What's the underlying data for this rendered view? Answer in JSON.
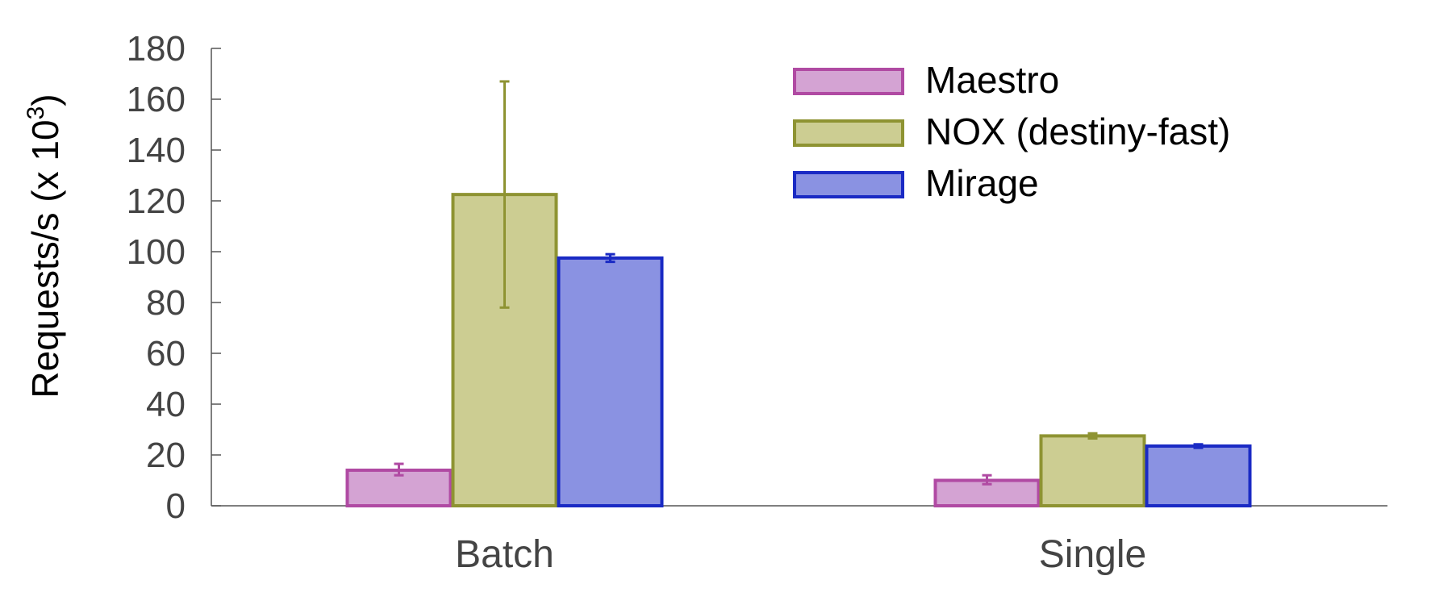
{
  "chart_data": {
    "type": "bar",
    "categories": [
      "Batch",
      "Single"
    ],
    "ylabel_base": "Requests/s (x 10",
    "ylabel_exponent": "3",
    "ylabel_close": ")",
    "ylim": [
      0,
      180
    ],
    "yticks": [
      0,
      20,
      40,
      60,
      80,
      100,
      120,
      140,
      160,
      180
    ],
    "grid": false,
    "legend_position": "top-right",
    "series": [
      {
        "name": "Maestro",
        "values": [
          14,
          10
        ],
        "error_low": [
          12,
          8.5
        ],
        "error_high": [
          16.5,
          12
        ],
        "fill": "#d4a3d3",
        "stroke": "#b04aa3"
      },
      {
        "name": "NOX (destiny-fast)",
        "values": [
          122.5,
          27.5
        ],
        "error_low": [
          78,
          26.5
        ],
        "error_high": [
          167,
          28.5
        ],
        "fill": "#cccd92",
        "stroke": "#8e9332"
      },
      {
        "name": "Mirage",
        "values": [
          97.5,
          23.5
        ],
        "error_low": [
          96,
          22.8
        ],
        "error_high": [
          99,
          24.2
        ],
        "fill": "#8a92e2",
        "stroke": "#1a2ac4"
      }
    ]
  }
}
